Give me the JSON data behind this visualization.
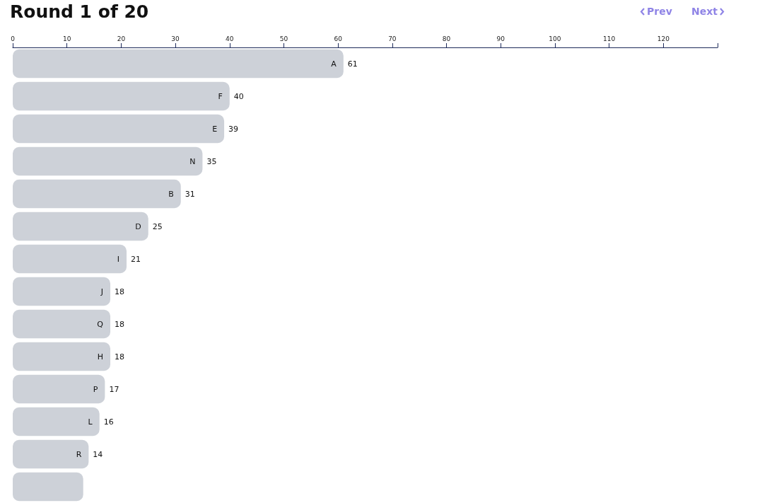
{
  "chart_data": {
    "type": "bar",
    "orientation": "horizontal",
    "title": "Round 1 of 20",
    "annotations": [
      "Prev",
      "Next"
    ],
    "categories": [
      "A",
      "F",
      "E",
      "N",
      "B",
      "D",
      "I",
      "J",
      "Q",
      "H",
      "P",
      "L",
      "R",
      null
    ],
    "values": [
      61,
      40,
      39,
      35,
      31,
      25,
      21,
      18,
      18,
      18,
      17,
      16,
      14,
      13
    ],
    "value_labels": [
      "61",
      "40",
      "39",
      "35",
      "31",
      "25",
      "21",
      "18",
      "18",
      "18",
      "17",
      "16",
      "14",
      null
    ],
    "color": "#cdd1d8",
    "xlim": [
      0,
      130
    ],
    "xticks": [
      0,
      10,
      20,
      30,
      40,
      50,
      60,
      70,
      80,
      90,
      100,
      110,
      120,
      {
        "value": 130,
        "label": null
      }
    ],
    "grid": false
  }
}
